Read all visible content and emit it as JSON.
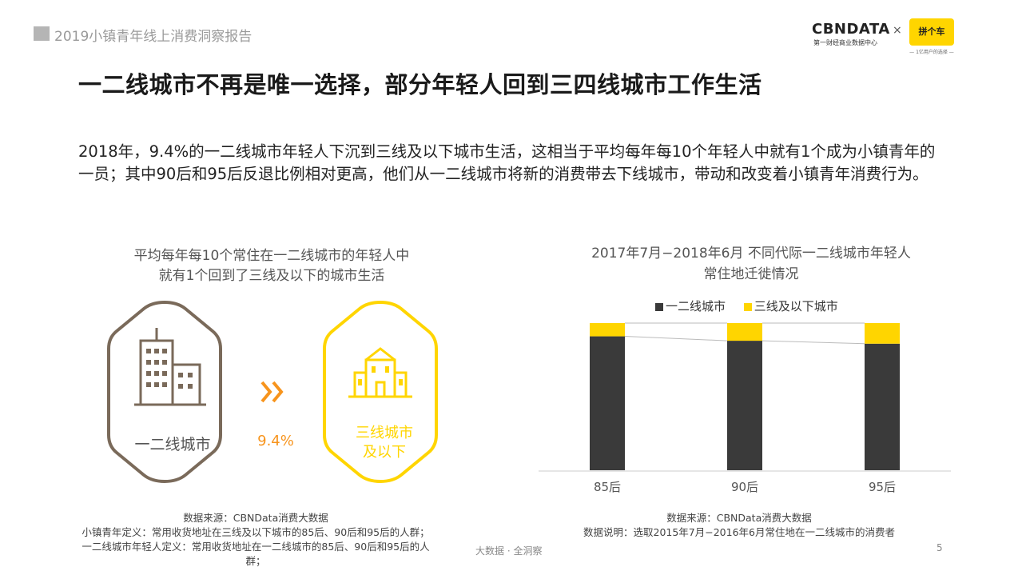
{
  "header": {
    "report_title": "2019小镇青年线上消费洞察报告",
    "logo_cbn": "CBNDATA",
    "logo_cbn_sub": "第一财经商业数据中心",
    "logo_sep": "×",
    "logo_partner": "拼个车",
    "logo_partner_sub": "— 1亿用户的选择 —"
  },
  "title": "一二线城市不再是唯一选择，部分年轻人回到三四线城市工作生活",
  "summary": "2018年，9.4%的一二线城市年轻人下沉到三线及以下城市生活，这相当于平均每年每10个年轻人中就有1个成为小镇青年的一员；其中90后和95后反退比例相对更高，他们从一二线城市将新的消费带去下线城市，带动和改变着小镇青年消费行为。",
  "left_panel": {
    "title_line1": "平均每年每10个常住在一二线城市的年轻人中",
    "title_line2": "就有1个回到了三线及以下的城市生活",
    "from_label": "一二线城市",
    "arrow_value": "9.4%",
    "to_label_line1": "三线城市",
    "to_label_line2": "及以下",
    "colors": {
      "from": "#7a6a5a",
      "to": "#ffd500",
      "arrow": "#f7941d"
    },
    "source_line1": "数据来源：CBNData消费大数据",
    "source_line2": "小镇青年定义：常用收货地址在三线及以下城市的85后、90后和95后的人群；",
    "source_line3": "一二线城市年轻人定义：常用收货地址在一二线城市的85后、90后和95后的人群；"
  },
  "right_panel": {
    "title_line1": "2017年7月−2018年6月 不同代际一二线城市年轻人",
    "title_line2": "常住地迁徙情况",
    "source_line1": "数据来源：CBNData消费大数据",
    "source_line2": "数据说明：选取2015年7月−2016年6月常住地在一二线城市的消费者"
  },
  "chart_data": {
    "type": "bar",
    "stacked": true,
    "normalized": true,
    "categories": [
      "85后",
      "90后",
      "95后"
    ],
    "series": [
      {
        "name": "一二线城市",
        "color": "#3a3a3a",
        "values": [
          0.91,
          0.88,
          0.86
        ]
      },
      {
        "name": "三线及以下城市",
        "color": "#ffd500",
        "values": [
          0.09,
          0.12,
          0.14
        ]
      }
    ],
    "ylim": [
      0,
      1
    ],
    "legend": "top",
    "grid": false
  },
  "footer": {
    "brand": "大数据 · 全洞察",
    "page": "5"
  }
}
